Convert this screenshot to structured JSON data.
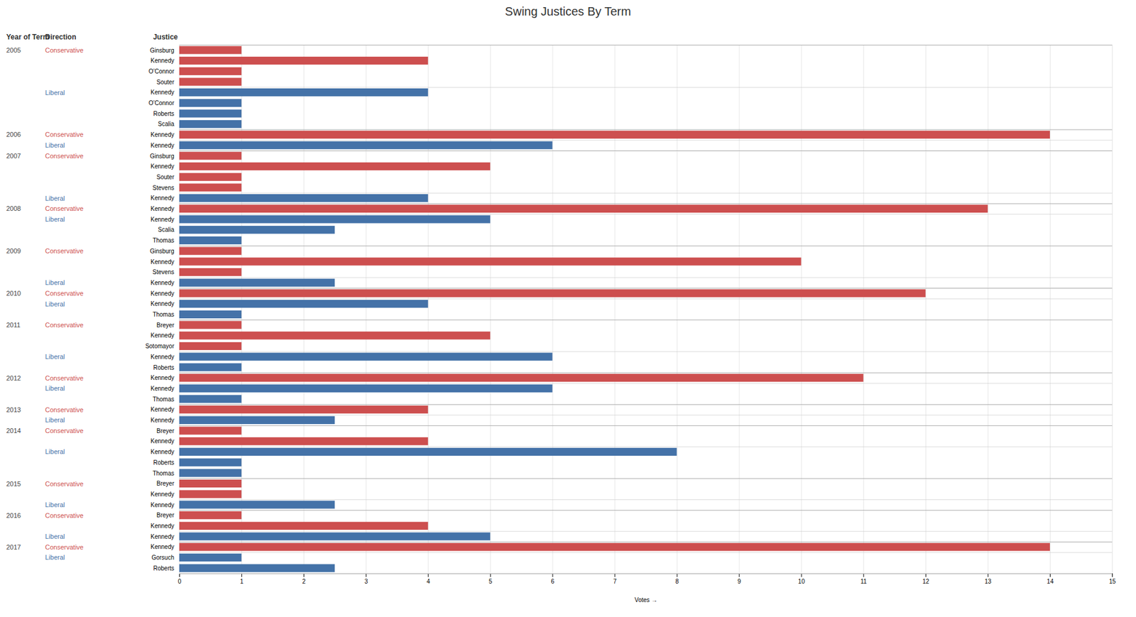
{
  "chart_data": {
    "type": "bar",
    "orientation": "horizontal",
    "title": "Swing Justices By Term",
    "xlabel": "Votes",
    "category_header": "Justice",
    "columns": [
      {
        "header": "Year of Term",
        "values": [
          "2005",
          null,
          null,
          null,
          null,
          null,
          null,
          null,
          "2006",
          null,
          "2007",
          null,
          null,
          null,
          null,
          "2008",
          null,
          null,
          null,
          "2009",
          null,
          null,
          null,
          "2010",
          null,
          null,
          "2011",
          null,
          null,
          null,
          null,
          "2012",
          null,
          null,
          "2013",
          null,
          "2014",
          null,
          null,
          null,
          null,
          "2015",
          null,
          null,
          "2016",
          null,
          null,
          "2017",
          null,
          null
        ]
      },
      {
        "header": "Direction",
        "values": [
          "Conservative",
          null,
          null,
          null,
          "Liberal",
          null,
          null,
          null,
          "Conservative",
          "Liberal",
          "Conservative",
          null,
          null,
          null,
          "Liberal",
          "Conservative",
          "Liberal",
          null,
          null,
          "Conservative",
          null,
          null,
          "Liberal",
          "Conservative",
          "Liberal",
          null,
          "Conservative",
          null,
          null,
          "Liberal",
          null,
          "Conservative",
          "Liberal",
          null,
          "Conservative",
          "Liberal",
          "Conservative",
          null,
          "Liberal",
          null,
          null,
          "Conservative",
          null,
          "Liberal",
          "Conservative",
          null,
          "Liberal",
          "Conservative",
          "Liberal",
          null
        ]
      }
    ],
    "categories": [
      "Ginsburg",
      "Kennedy",
      "O’Connor",
      "Souter",
      "Kennedy",
      "O’Connor",
      "Roberts",
      "Scalia",
      "Kennedy",
      "Kennedy",
      "Ginsburg",
      "Kennedy",
      "Souter",
      "Stevens",
      "Kennedy",
      "Kennedy",
      "Kennedy",
      "Scalia",
      "Thomas",
      "Ginsburg",
      "Kennedy",
      "Stevens",
      "Kennedy",
      "Kennedy",
      "Kennedy",
      "Thomas",
      "Breyer",
      "Kennedy",
      "Sotomayor",
      "Kennedy",
      "Roberts",
      "Kennedy",
      "Kennedy",
      "Thomas",
      "Kennedy",
      "Kennedy",
      "Breyer",
      "Kennedy",
      "Kennedy",
      "Roberts",
      "Thomas",
      "Breyer",
      "Kennedy",
      "Kennedy",
      "Breyer",
      "Kennedy",
      "Kennedy",
      "Kennedy",
      "Gorsuch",
      "Roberts"
    ],
    "values": [
      1,
      4,
      1,
      1,
      4,
      1,
      1,
      1,
      14,
      6,
      1,
      5,
      1,
      1,
      4,
      13,
      5,
      2.5,
      1,
      1,
      10,
      1,
      2.5,
      12,
      4,
      1,
      1,
      5,
      1,
      6,
      1,
      11,
      6,
      1,
      4,
      2.5,
      1,
      4,
      8,
      1,
      1,
      1,
      1,
      2.5,
      1,
      4,
      5,
      14,
      1,
      2.5
    ],
    "colors": [
      "#cd4f4f",
      "#cd4f4f",
      "#cd4f4f",
      "#cd4f4f",
      "#4472a8",
      "#4472a8",
      "#4472a8",
      "#4472a8",
      "#cd4f4f",
      "#4472a8",
      "#cd4f4f",
      "#cd4f4f",
      "#cd4f4f",
      "#cd4f4f",
      "#4472a8",
      "#cd4f4f",
      "#4472a8",
      "#4472a8",
      "#4472a8",
      "#cd4f4f",
      "#cd4f4f",
      "#cd4f4f",
      "#4472a8",
      "#cd4f4f",
      "#4472a8",
      "#4472a8",
      "#cd4f4f",
      "#cd4f4f",
      "#cd4f4f",
      "#4472a8",
      "#4472a8",
      "#cd4f4f",
      "#4472a8",
      "#4472a8",
      "#cd4f4f",
      "#4472a8",
      "#cd4f4f",
      "#cd4f4f",
      "#4472a8",
      "#4472a8",
      "#4472a8",
      "#cd4f4f",
      "#cd4f4f",
      "#4472a8",
      "#cd4f4f",
      "#cd4f4f",
      "#4472a8",
      "#cd4f4f",
      "#4472a8",
      "#4472a8"
    ],
    "xlim": [
      0,
      15
    ],
    "xticks": [
      0,
      1,
      2,
      3,
      4,
      5,
      6,
      7,
      8,
      9,
      10,
      11,
      12,
      13,
      14,
      15
    ],
    "grid": true
  }
}
